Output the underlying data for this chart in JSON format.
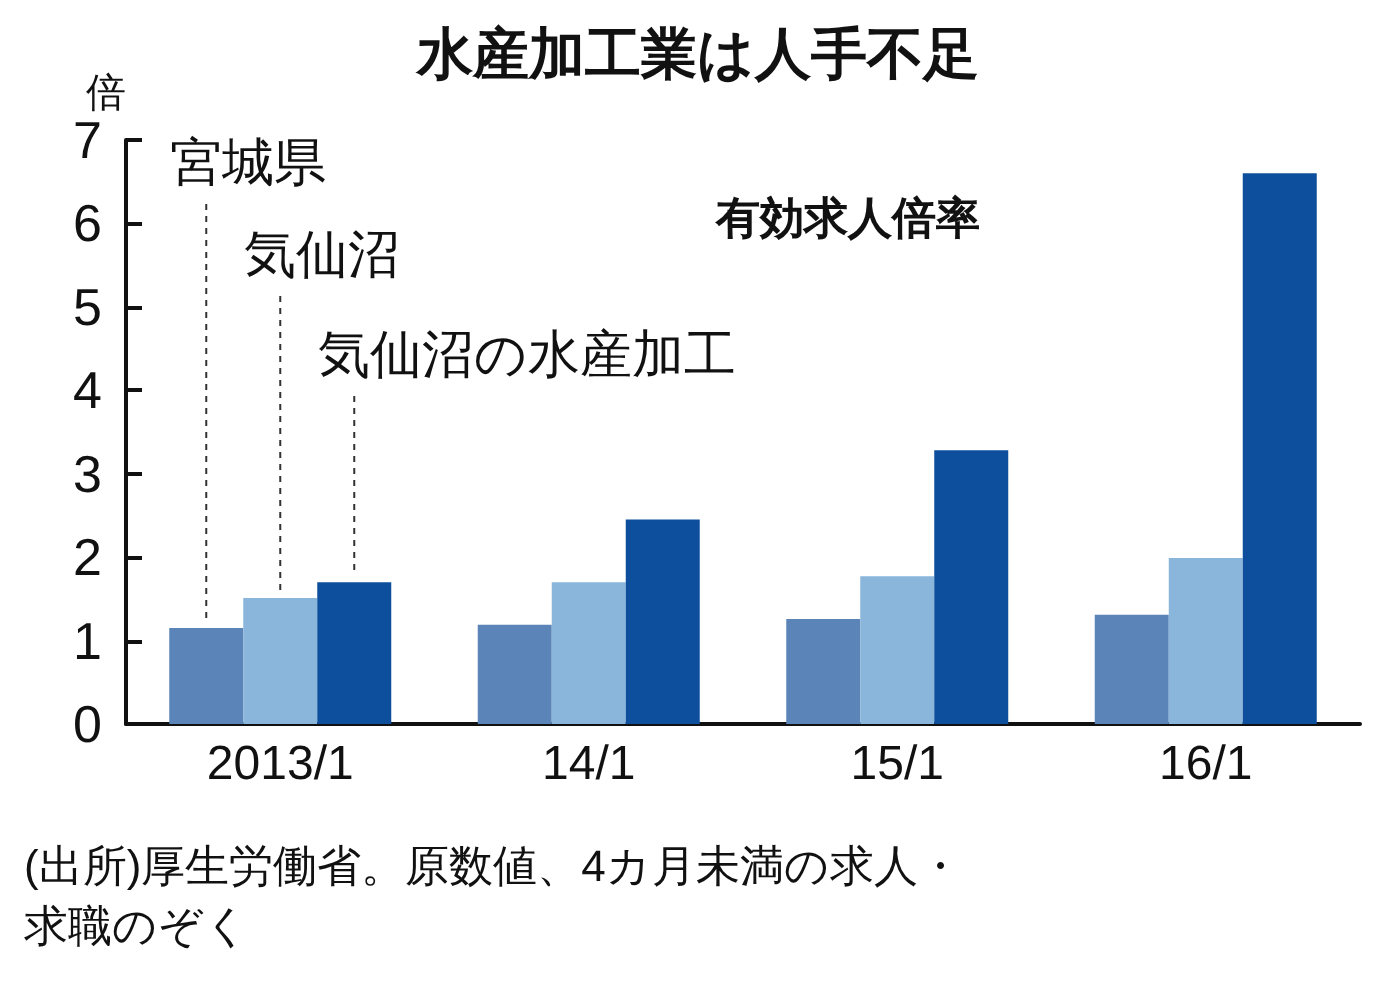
{
  "chart_data": {
    "type": "bar",
    "title": "水産加工業は人手不足",
    "subtitle": "有効求人倍率",
    "ylabel": "倍",
    "categories": [
      "2013/1",
      "14/1",
      "15/1",
      "16/1"
    ],
    "series": [
      {
        "name": "宮城県",
        "color": "#5b84b8",
        "values": [
          1.15,
          1.19,
          1.26,
          1.31
        ]
      },
      {
        "name": "気仙沼",
        "color": "#8ab6dc",
        "values": [
          1.51,
          1.7,
          1.77,
          1.99
        ]
      },
      {
        "name": "気仙沼の水産加工",
        "color": "#0d4f9c",
        "values": [
          1.7,
          2.45,
          3.28,
          6.6
        ]
      }
    ],
    "ylim": [
      0,
      7
    ],
    "yticks": [
      0,
      1,
      2,
      3,
      4,
      5,
      6,
      7
    ],
    "grid": false,
    "legend": false,
    "annotations": [
      "(出所)厚生労働省。原数値、4カ月未満の求人・求職のぞく"
    ]
  }
}
